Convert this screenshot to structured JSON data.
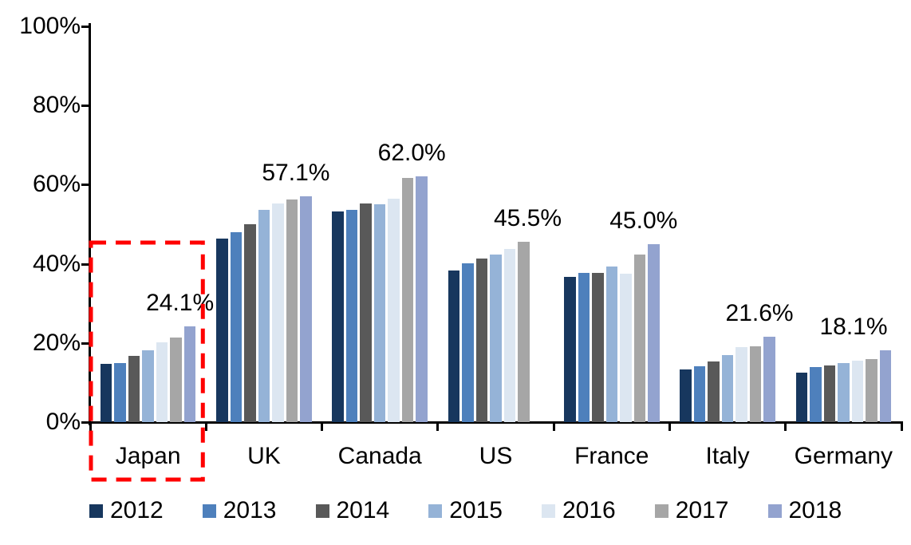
{
  "chart_data": {
    "type": "bar",
    "title": "",
    "xlabel": "",
    "ylabel": "",
    "ylim": [
      0,
      100
    ],
    "grid": false,
    "legend_position": "bottom",
    "categories": [
      "Japan",
      "UK",
      "Canada",
      "US",
      "France",
      "Italy",
      "Germany"
    ],
    "yticks": [
      "0%",
      "20%",
      "40%",
      "60%",
      "80%",
      "100%"
    ],
    "ytick_values": [
      0,
      20,
      40,
      60,
      80,
      100
    ],
    "series": [
      {
        "name": "2012",
        "color": "#17375E",
        "values": [
          14.8,
          46.3,
          53.2,
          38.3,
          36.6,
          13.3,
          12.5
        ]
      },
      {
        "name": "2013",
        "color": "#4E80BC",
        "values": [
          15.0,
          48.0,
          53.7,
          40.2,
          37.8,
          14.2,
          14.0
        ]
      },
      {
        "name": "2014",
        "color": "#595959",
        "values": [
          16.7,
          50.1,
          55.2,
          41.3,
          37.7,
          15.3,
          14.4
        ]
      },
      {
        "name": "2015",
        "color": "#95B3D7",
        "values": [
          18.2,
          53.6,
          55.0,
          42.3,
          39.3,
          16.9,
          14.9
        ]
      },
      {
        "name": "2016",
        "color": "#DCE6F1",
        "values": [
          20.1,
          55.2,
          56.5,
          43.7,
          37.4,
          19.0,
          15.5
        ]
      },
      {
        "name": "2017",
        "color": "#A6A6A6",
        "values": [
          21.4,
          56.2,
          61.6,
          45.5,
          42.4,
          19.2,
          16.0
        ]
      },
      {
        "name": "2018",
        "color": "#93A3CF",
        "values": [
          24.1,
          57.1,
          62.0,
          null,
          45.0,
          21.6,
          18.1
        ]
      }
    ],
    "labels": [
      "24.1%",
      "57.1%",
      "62.0%",
      "45.5%",
      "45.0%",
      "21.6%",
      "18.1%"
    ],
    "highlight": {
      "category": "Japan",
      "color": "#FF0000",
      "style": "dashed-box"
    }
  }
}
